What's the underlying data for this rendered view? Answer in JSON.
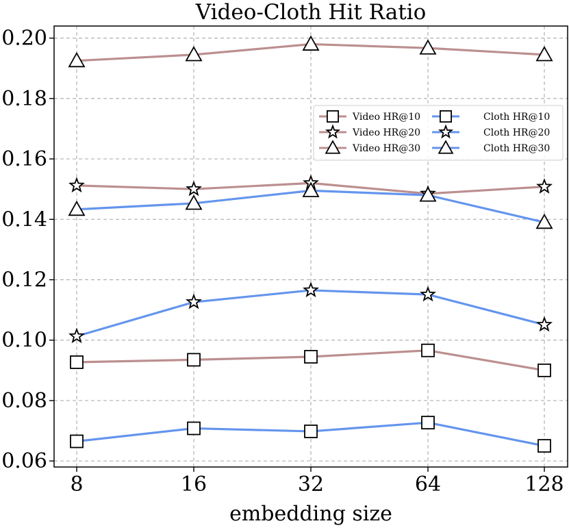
{
  "chart_data": {
    "type": "line",
    "title": "Video-Cloth Hit Ratio",
    "xlabel": "embedding size",
    "ylabel": "",
    "categories": [
      "8",
      "16",
      "32",
      "64",
      "128"
    ],
    "ylim": [
      0.058,
      0.204
    ],
    "yticks": [
      "0.06",
      "0.08",
      "0.10",
      "0.12",
      "0.14",
      "0.16",
      "0.18",
      "0.20"
    ],
    "yticks_values": [
      0.06,
      0.08,
      0.1,
      0.12,
      0.14,
      0.16,
      0.18,
      0.2
    ],
    "grid": true,
    "legend_position": "upper right",
    "series": [
      {
        "name": "Video HR@10",
        "color": "#bc8f8f",
        "marker": "square",
        "values": [
          0.0927,
          0.0935,
          0.0945,
          0.0966,
          0.09
        ]
      },
      {
        "name": "Video HR@20",
        "color": "#bc8f8f",
        "marker": "star",
        "values": [
          0.1512,
          0.15,
          0.152,
          0.1485,
          0.1508
        ]
      },
      {
        "name": "Video HR@30",
        "color": "#bc8f8f",
        "marker": "triangle",
        "values": [
          0.1925,
          0.1945,
          0.198,
          0.1967,
          0.1945
        ]
      },
      {
        "name": "Cloth HR@10",
        "color": "#6495ed",
        "marker": "square",
        "values": [
          0.0665,
          0.0708,
          0.0698,
          0.0727,
          0.065
        ]
      },
      {
        "name": "Cloth HR@20",
        "color": "#6495ed",
        "marker": "star",
        "values": [
          0.1013,
          0.1126,
          0.1165,
          0.1151,
          0.1051
        ]
      },
      {
        "name": "Cloth HR@30",
        "color": "#6495ed",
        "marker": "triangle",
        "values": [
          0.1433,
          0.1453,
          0.1495,
          0.148,
          0.139
        ]
      }
    ]
  }
}
